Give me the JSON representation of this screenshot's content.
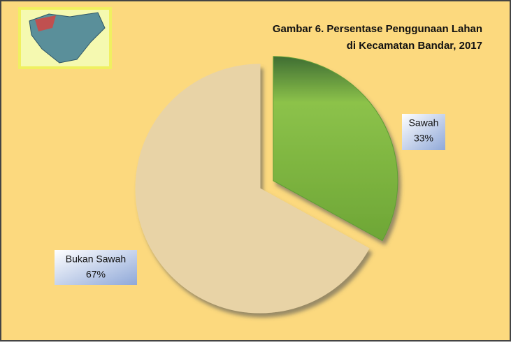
{
  "chart_data": {
    "type": "pie",
    "title": [
      "Gambar 6. Persentase Penggunaan Lahan",
      "di Kecamatan Bandar, 2017"
    ],
    "categories": [
      "Sawah",
      "Bukan Sawah"
    ],
    "values": [
      33,
      67
    ],
    "value_labels": [
      "33%",
      "67%"
    ],
    "colors": [
      "#5f9e34",
      "#e8d3a6"
    ]
  }
}
